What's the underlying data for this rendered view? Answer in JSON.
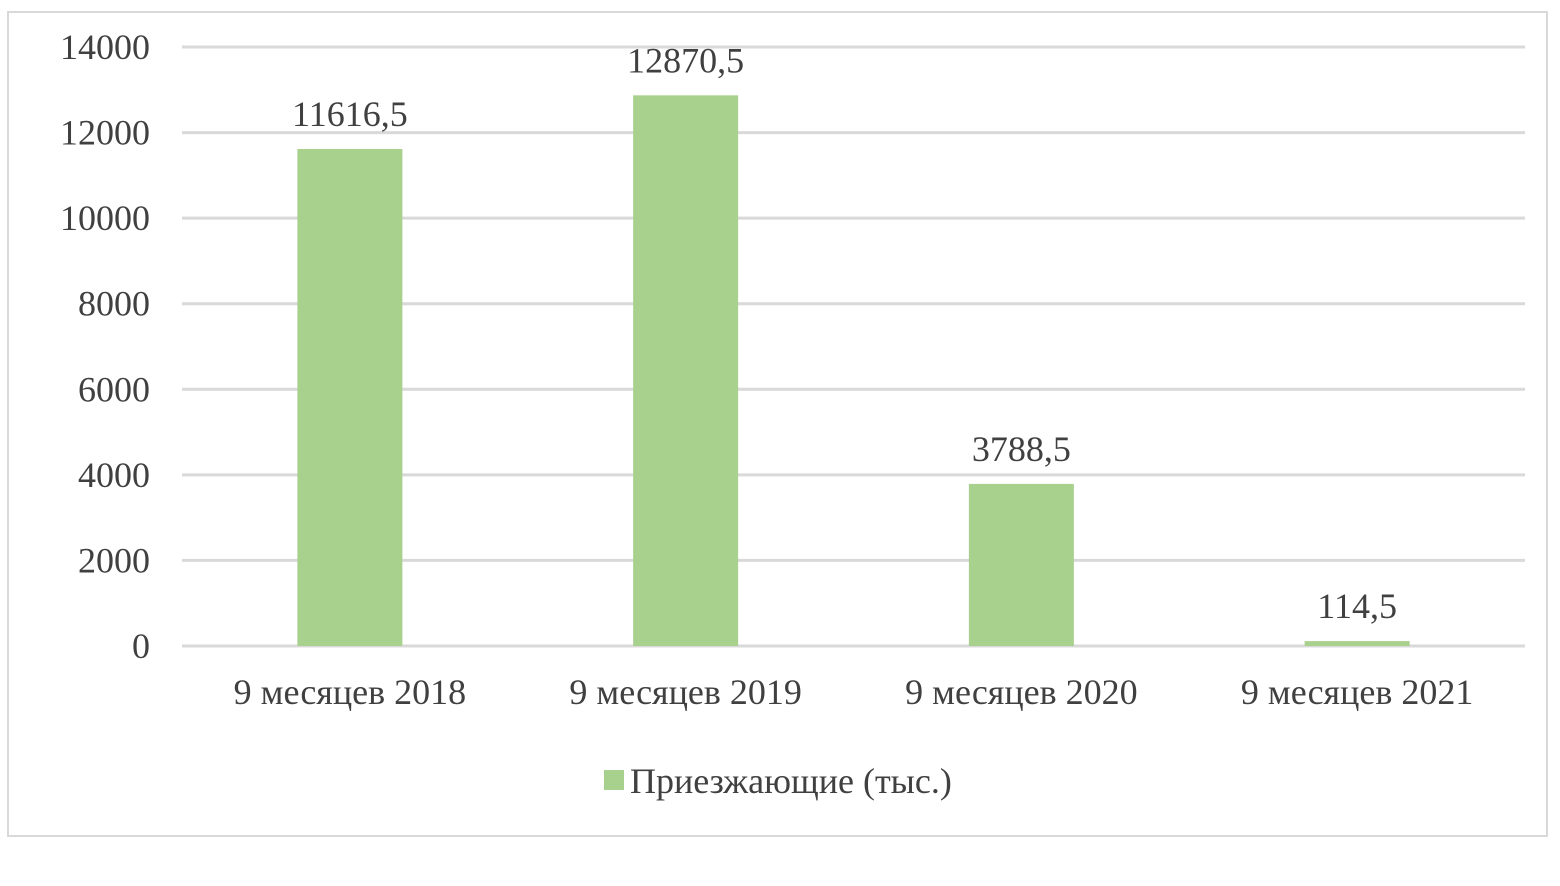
{
  "chart_data": {
    "type": "bar",
    "title": "",
    "xlabel": "",
    "ylabel": "",
    "categories": [
      "9 месяцев 2018",
      "9 месяцев 2019",
      "9 месяцев 2020",
      "9 месяцев 2021"
    ],
    "series": [
      {
        "name": "Приезжающие (тыс.)",
        "values": [
          11616.5,
          12870.5,
          3788.5,
          114.5
        ],
        "value_labels": [
          "11616,5",
          "12870,5",
          "3788,5",
          "114,5"
        ],
        "color": "#a9d18e"
      }
    ],
    "ylim": [
      0,
      14000
    ],
    "yticks": [
      0,
      2000,
      4000,
      6000,
      8000,
      10000,
      12000,
      14000
    ],
    "ytick_labels": [
      "0",
      "2000",
      "4000",
      "6000",
      "8000",
      "10000",
      "12000",
      "14000"
    ],
    "grid": true,
    "legend_position": "bottom",
    "colors": {
      "gridline": "#d9d9d9",
      "text": "#404040",
      "bar": "#a9d18e"
    }
  }
}
